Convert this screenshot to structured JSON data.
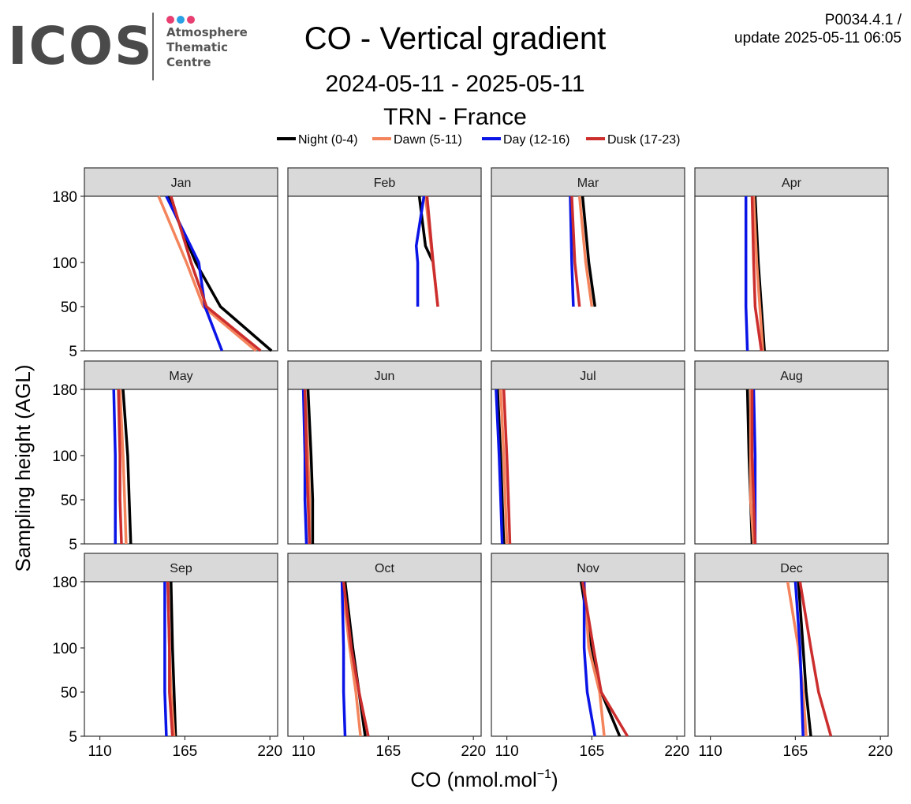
{
  "header": {
    "logo": {
      "word": "ICOS",
      "lines": [
        "Atmosphere",
        "Thematic",
        "Centre"
      ],
      "dot_colors": [
        "#e83e70",
        "#2aa1e4",
        "#e83e70"
      ]
    },
    "title": "CO - Vertical gradient",
    "subtitle_period": "2024-05-11 - 2025-05-11",
    "subtitle_station": "TRN - France",
    "meta_line1": "P0034.4.1 /",
    "meta_line2": "update  2025-05-11 06:05"
  },
  "chart_data": {
    "type": "line",
    "xlabel": "CO (nmol.mol",
    "xlabel_sup": "−1",
    "xlabel_close": ")",
    "ylabel": "Sampling height (AGL)",
    "xlim": [
      100,
      225
    ],
    "xticks": [
      110,
      165,
      220
    ],
    "ylim": [
      5,
      180
    ],
    "yticks": [
      5,
      50,
      100,
      180
    ],
    "heights": [
      5,
      50,
      100,
      180
    ],
    "legend_position": "top",
    "series": [
      {
        "name": "Night (0-4)",
        "color": "#000000"
      },
      {
        "name": "Dawn (5-11)",
        "color": "#f4845c"
      },
      {
        "name": "Day (12-16)",
        "color": "#0a14e6"
      },
      {
        "name": "Dusk (17-23)",
        "color": "#cc2e2e"
      }
    ],
    "panels": [
      {
        "label": "Jan",
        "values": {
          "Night (0-4)": [
            {
              "x": 221,
              "y": 5
            },
            {
              "x": 188,
              "y": 50
            },
            {
              "x": 172,
              "y": 100
            },
            {
              "x": 154,
              "y": 180
            }
          ],
          "Dawn (5-11)": [
            {
              "x": 211,
              "y": 5
            },
            {
              "x": 177,
              "y": 50
            },
            {
              "x": 166,
              "y": 100
            },
            {
              "x": 148,
              "y": 180
            }
          ],
          "Day (12-16)": [
            {
              "x": 189,
              "y": 5
            },
            {
              "x": 178,
              "y": 50
            },
            {
              "x": 174,
              "y": 100
            },
            {
              "x": 153,
              "y": 180
            }
          ],
          "Dusk (17-23)": [
            {
              "x": 214,
              "y": 5
            },
            {
              "x": 179,
              "y": 50
            },
            {
              "x": 169,
              "y": 100
            },
            {
              "x": 156,
              "y": 180
            }
          ]
        }
      },
      {
        "label": "Feb",
        "values": {
          "Night (0-4)": [
            {
              "x": 194,
              "y": 100
            },
            {
              "x": 189,
              "y": 120
            },
            {
              "x": 185,
              "y": 180
            }
          ],
          "Dawn (5-11)": [
            {
              "x": 197,
              "y": 50
            },
            {
              "x": 189,
              "y": 180
            }
          ],
          "Day (12-16)": [
            {
              "x": 184,
              "y": 50
            },
            {
              "x": 184,
              "y": 100
            },
            {
              "x": 183,
              "y": 120
            },
            {
              "x": 188,
              "y": 180
            }
          ],
          "Dusk (17-23)": [
            {
              "x": 197,
              "y": 50
            },
            {
              "x": 194,
              "y": 100
            },
            {
              "x": 190,
              "y": 180
            }
          ]
        }
      },
      {
        "label": "Mar",
        "values": {
          "Night (0-4)": [
            {
              "x": 167,
              "y": 50
            },
            {
              "x": 163,
              "y": 100
            },
            {
              "x": 159,
              "y": 180
            }
          ],
          "Dawn (5-11)": [
            {
              "x": 165,
              "y": 50
            },
            {
              "x": 161,
              "y": 100
            },
            {
              "x": 157,
              "y": 180
            }
          ],
          "Day (12-16)": [
            {
              "x": 153,
              "y": 50
            },
            {
              "x": 152,
              "y": 100
            },
            {
              "x": 151,
              "y": 180
            }
          ],
          "Dusk (17-23)": [
            {
              "x": 157,
              "y": 50
            },
            {
              "x": 154,
              "y": 100
            },
            {
              "x": 152,
              "y": 180
            }
          ]
        }
      },
      {
        "label": "Apr",
        "values": {
          "Night (0-4)": [
            {
              "x": 145,
              "y": 5
            },
            {
              "x": 143,
              "y": 50
            },
            {
              "x": 141,
              "y": 100
            },
            {
              "x": 139,
              "y": 180
            }
          ],
          "Dawn (5-11)": [
            {
              "x": 144,
              "y": 5
            },
            {
              "x": 142,
              "y": 50
            },
            {
              "x": 140,
              "y": 100
            },
            {
              "x": 138,
              "y": 180
            }
          ],
          "Day (12-16)": [
            {
              "x": 134,
              "y": 5
            },
            {
              "x": 133,
              "y": 50
            },
            {
              "x": 133,
              "y": 100
            },
            {
              "x": 133,
              "y": 180
            }
          ],
          "Dusk (17-23)": [
            {
              "x": 143,
              "y": 5
            },
            {
              "x": 139,
              "y": 50
            },
            {
              "x": 138,
              "y": 100
            },
            {
              "x": 137,
              "y": 180
            }
          ]
        }
      },
      {
        "label": "May",
        "values": {
          "Night (0-4)": [
            {
              "x": 130,
              "y": 5
            },
            {
              "x": 129,
              "y": 50
            },
            {
              "x": 128,
              "y": 100
            },
            {
              "x": 125,
              "y": 180
            }
          ],
          "Dawn (5-11)": [
            {
              "x": 127,
              "y": 5
            },
            {
              "x": 126,
              "y": 50
            },
            {
              "x": 125,
              "y": 100
            },
            {
              "x": 123,
              "y": 180
            }
          ],
          "Day (12-16)": [
            {
              "x": 120,
              "y": 5
            },
            {
              "x": 120,
              "y": 50
            },
            {
              "x": 120,
              "y": 100
            },
            {
              "x": 119,
              "y": 180
            }
          ],
          "Dusk (17-23)": [
            {
              "x": 124,
              "y": 5
            },
            {
              "x": 123,
              "y": 50
            },
            {
              "x": 123,
              "y": 100
            },
            {
              "x": 122,
              "y": 180
            }
          ]
        }
      },
      {
        "label": "Jun",
        "values": {
          "Night (0-4)": [
            {
              "x": 116,
              "y": 5
            },
            {
              "x": 116,
              "y": 50
            },
            {
              "x": 115,
              "y": 100
            },
            {
              "x": 113,
              "y": 180
            }
          ],
          "Dawn (5-11)": [
            {
              "x": 114,
              "y": 5
            },
            {
              "x": 114,
              "y": 50
            },
            {
              "x": 113,
              "y": 100
            },
            {
              "x": 111,
              "y": 180
            }
          ],
          "Day (12-16)": [
            {
              "x": 112,
              "y": 5
            },
            {
              "x": 111,
              "y": 50
            },
            {
              "x": 111,
              "y": 100
            },
            {
              "x": 110,
              "y": 180
            }
          ],
          "Dusk (17-23)": [
            {
              "x": 114,
              "y": 5
            },
            {
              "x": 113,
              "y": 50
            },
            {
              "x": 112,
              "y": 100
            },
            {
              "x": 111,
              "y": 180
            }
          ]
        }
      },
      {
        "label": "Jul",
        "values": {
          "Night (0-4)": [
            {
              "x": 108,
              "y": 5
            },
            {
              "x": 107,
              "y": 50
            },
            {
              "x": 106,
              "y": 100
            },
            {
              "x": 104,
              "y": 180
            }
          ],
          "Dawn (5-11)": [
            {
              "x": 110,
              "y": 5
            },
            {
              "x": 109,
              "y": 50
            },
            {
              "x": 108,
              "y": 100
            },
            {
              "x": 106,
              "y": 180
            }
          ],
          "Day (12-16)": [
            {
              "x": 107,
              "y": 5
            },
            {
              "x": 106,
              "y": 50
            },
            {
              "x": 105,
              "y": 100
            },
            {
              "x": 103,
              "y": 180
            }
          ],
          "Dusk (17-23)": [
            {
              "x": 112,
              "y": 5
            },
            {
              "x": 111,
              "y": 50
            },
            {
              "x": 110,
              "y": 100
            },
            {
              "x": 108,
              "y": 180
            }
          ]
        }
      },
      {
        "label": "Aug",
        "values": {
          "Night (0-4)": [
            {
              "x": 137,
              "y": 5
            },
            {
              "x": 136,
              "y": 50
            },
            {
              "x": 135,
              "y": 100
            },
            {
              "x": 134,
              "y": 180
            }
          ],
          "Dawn (5-11)": [
            {
              "x": 138,
              "y": 5
            },
            {
              "x": 136,
              "y": 50
            },
            {
              "x": 136,
              "y": 100
            },
            {
              "x": 136,
              "y": 180
            }
          ],
          "Day (12-16)": [
            {
              "x": 139,
              "y": 5
            },
            {
              "x": 139,
              "y": 50
            },
            {
              "x": 139,
              "y": 100
            },
            {
              "x": 138,
              "y": 180
            }
          ],
          "Dusk (17-23)": [
            {
              "x": 139,
              "y": 5
            },
            {
              "x": 138,
              "y": 50
            },
            {
              "x": 137,
              "y": 100
            },
            {
              "x": 137,
              "y": 180
            }
          ]
        }
      },
      {
        "label": "Sep",
        "values": {
          "Night (0-4)": [
            {
              "x": 159,
              "y": 5
            },
            {
              "x": 158,
              "y": 50
            },
            {
              "x": 157,
              "y": 100
            },
            {
              "x": 156,
              "y": 180
            }
          ],
          "Dawn (5-11)": [
            {
              "x": 158,
              "y": 5
            },
            {
              "x": 156,
              "y": 50
            },
            {
              "x": 155,
              "y": 100
            },
            {
              "x": 154,
              "y": 180
            }
          ],
          "Day (12-16)": [
            {
              "x": 153,
              "y": 5
            },
            {
              "x": 152,
              "y": 50
            },
            {
              "x": 152,
              "y": 100
            },
            {
              "x": 152,
              "y": 180
            }
          ],
          "Dusk (17-23)": [
            {
              "x": 157,
              "y": 5
            },
            {
              "x": 155,
              "y": 50
            },
            {
              "x": 155,
              "y": 100
            },
            {
              "x": 154,
              "y": 180
            }
          ]
        }
      },
      {
        "label": "Oct",
        "values": {
          "Night (0-4)": [
            {
              "x": 150,
              "y": 5
            },
            {
              "x": 146,
              "y": 50
            },
            {
              "x": 142,
              "y": 100
            },
            {
              "x": 137,
              "y": 180
            }
          ],
          "Dawn (5-11)": [
            {
              "x": 147,
              "y": 5
            },
            {
              "x": 144,
              "y": 50
            },
            {
              "x": 140,
              "y": 100
            },
            {
              "x": 135,
              "y": 180
            }
          ],
          "Day (12-16)": [
            {
              "x": 137,
              "y": 5
            },
            {
              "x": 136,
              "y": 50
            },
            {
              "x": 136,
              "y": 100
            },
            {
              "x": 135,
              "y": 180
            }
          ],
          "Dusk (17-23)": [
            {
              "x": 152,
              "y": 5
            },
            {
              "x": 146,
              "y": 50
            },
            {
              "x": 141,
              "y": 100
            },
            {
              "x": 136,
              "y": 180
            }
          ]
        }
      },
      {
        "label": "Nov",
        "values": {
          "Night (0-4)": [
            {
              "x": 183,
              "y": 5
            },
            {
              "x": 171,
              "y": 50
            },
            {
              "x": 165,
              "y": 100
            },
            {
              "x": 158,
              "y": 180
            }
          ],
          "Dawn (5-11)": [
            {
              "x": 173,
              "y": 5
            },
            {
              "x": 170,
              "y": 50
            },
            {
              "x": 163,
              "y": 100
            },
            {
              "x": 160,
              "y": 180
            }
          ],
          "Day (12-16)": [
            {
              "x": 167,
              "y": 5
            },
            {
              "x": 162,
              "y": 50
            },
            {
              "x": 160,
              "y": 100
            },
            {
              "x": 160,
              "y": 180
            }
          ],
          "Dusk (17-23)": [
            {
              "x": 188,
              "y": 5
            },
            {
              "x": 171,
              "y": 50
            },
            {
              "x": 166,
              "y": 100
            },
            {
              "x": 159,
              "y": 180
            }
          ]
        }
      },
      {
        "label": "Dec",
        "values": {
          "Night (0-4)": [
            {
              "x": 175,
              "y": 5
            },
            {
              "x": 172,
              "y": 50
            },
            {
              "x": 170,
              "y": 100
            },
            {
              "x": 167,
              "y": 180
            }
          ],
          "Dawn (5-11)": [
            {
              "x": 172,
              "y": 5
            },
            {
              "x": 170,
              "y": 50
            },
            {
              "x": 167,
              "y": 100
            },
            {
              "x": 160,
              "y": 180
            }
          ],
          "Day (12-16)": [
            {
              "x": 170,
              "y": 5
            },
            {
              "x": 169,
              "y": 50
            },
            {
              "x": 168,
              "y": 100
            },
            {
              "x": 165,
              "y": 180
            }
          ],
          "Dusk (17-23)": [
            {
              "x": 188,
              "y": 5
            },
            {
              "x": 180,
              "y": 50
            },
            {
              "x": 175,
              "y": 100
            },
            {
              "x": 168,
              "y": 180
            }
          ]
        }
      }
    ]
  }
}
